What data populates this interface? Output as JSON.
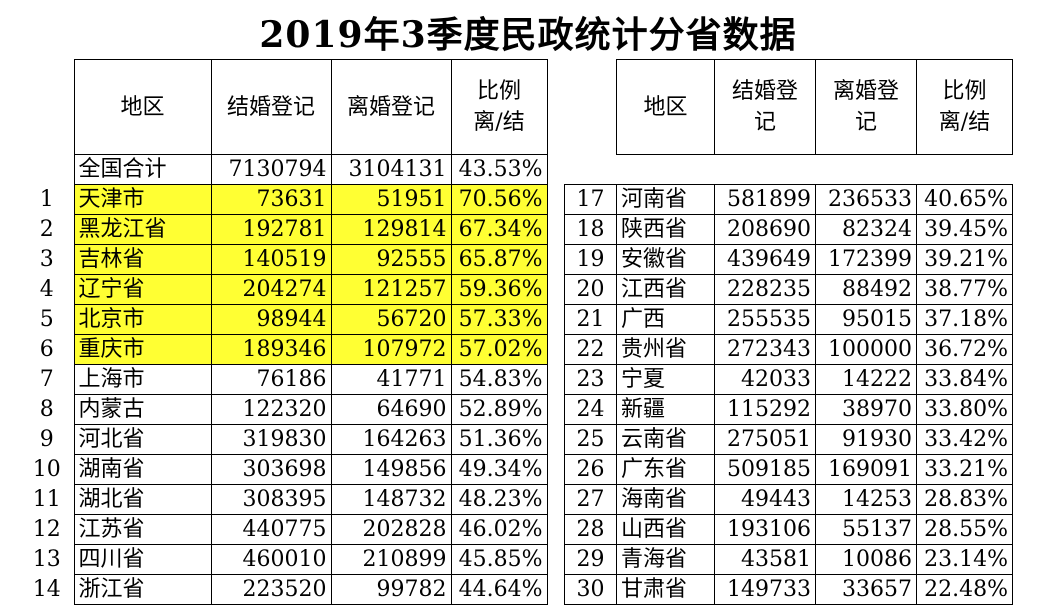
{
  "title": "2019年3季度民政统计分省数据",
  "left_table": {
    "headers": {
      "region": "地区",
      "marriage": "结婚登记",
      "divorce": "离婚登记",
      "ratio": "比例\n离/结"
    },
    "total": {
      "region": "全国合计",
      "marriage": "7130794",
      "divorce": "3104131",
      "ratio": "43.53%"
    },
    "rows": [
      {
        "rank": "1",
        "region": "天津市",
        "marriage": "73631",
        "divorce": "51951",
        "ratio": "70.56%"
      },
      {
        "rank": "2",
        "region": "黑龙江省",
        "marriage": "192781",
        "divorce": "129814",
        "ratio": "67.34%"
      },
      {
        "rank": "3",
        "region": "吉林省",
        "marriage": "140519",
        "divorce": "92555",
        "ratio": "65.87%"
      },
      {
        "rank": "4",
        "region": "辽宁省",
        "marriage": "204274",
        "divorce": "121257",
        "ratio": "59.36%"
      },
      {
        "rank": "5",
        "region": "北京市",
        "marriage": "98944",
        "divorce": "56720",
        "ratio": "57.33%"
      },
      {
        "rank": "6",
        "region": "重庆市",
        "marriage": "189346",
        "divorce": "107972",
        "ratio": "57.02%"
      },
      {
        "rank": "7",
        "region": "上海市",
        "marriage": "76186",
        "divorce": "41771",
        "ratio": "54.83%"
      },
      {
        "rank": "8",
        "region": "内蒙古",
        "marriage": "122320",
        "divorce": "64690",
        "ratio": "52.89%"
      },
      {
        "rank": "9",
        "region": "河北省",
        "marriage": "319830",
        "divorce": "164263",
        "ratio": "51.36%"
      },
      {
        "rank": "10",
        "region": "湖南省",
        "marriage": "303698",
        "divorce": "149856",
        "ratio": "49.34%"
      },
      {
        "rank": "11",
        "region": "湖北省",
        "marriage": "308395",
        "divorce": "148732",
        "ratio": "48.23%"
      },
      {
        "rank": "12",
        "region": "江苏省",
        "marriage": "440775",
        "divorce": "202828",
        "ratio": "46.02%"
      },
      {
        "rank": "13",
        "region": "四川省",
        "marriage": "460010",
        "divorce": "210899",
        "ratio": "45.85%"
      },
      {
        "rank": "14",
        "region": "浙江省",
        "marriage": "223520",
        "divorce": "99782",
        "ratio": "44.64%"
      }
    ]
  },
  "right_table": {
    "headers": {
      "region": "地区",
      "marriage": "结婚登\n记",
      "divorce": "离婚登\n记",
      "ratio": "比例\n离/结"
    },
    "rows": [
      {
        "rank": "17",
        "region": "河南省",
        "marriage": "581899",
        "divorce": "236533",
        "ratio": "40.65%"
      },
      {
        "rank": "18",
        "region": "陕西省",
        "marriage": "208690",
        "divorce": "82324",
        "ratio": "39.45%"
      },
      {
        "rank": "19",
        "region": "安徽省",
        "marriage": "439649",
        "divorce": "172399",
        "ratio": "39.21%"
      },
      {
        "rank": "20",
        "region": "江西省",
        "marriage": "228235",
        "divorce": "88492",
        "ratio": "38.77%"
      },
      {
        "rank": "21",
        "region": "广西",
        "marriage": "255535",
        "divorce": "95015",
        "ratio": "37.18%"
      },
      {
        "rank": "22",
        "region": "贵州省",
        "marriage": "272343",
        "divorce": "100000",
        "ratio": "36.72%"
      },
      {
        "rank": "23",
        "region": "宁夏",
        "marriage": "42033",
        "divorce": "14222",
        "ratio": "33.84%"
      },
      {
        "rank": "24",
        "region": "新疆",
        "marriage": "115292",
        "divorce": "38970",
        "ratio": "33.80%"
      },
      {
        "rank": "25",
        "region": "云南省",
        "marriage": "275051",
        "divorce": "91930",
        "ratio": "33.42%"
      },
      {
        "rank": "26",
        "region": "广东省",
        "marriage": "509185",
        "divorce": "169091",
        "ratio": "33.21%"
      },
      {
        "rank": "27",
        "region": "海南省",
        "marriage": "49443",
        "divorce": "14253",
        "ratio": "28.83%"
      },
      {
        "rank": "28",
        "region": "山西省",
        "marriage": "193106",
        "divorce": "55137",
        "ratio": "28.55%"
      },
      {
        "rank": "29",
        "region": "青海省",
        "marriage": "43581",
        "divorce": "10086",
        "ratio": "23.14%"
      },
      {
        "rank": "30",
        "region": "甘肃省",
        "marriage": "149733",
        "divorce": "33657",
        "ratio": "22.48%"
      }
    ]
  },
  "highlight_color": "#ffff33",
  "highlighted_ranks_left": [
    "1",
    "2",
    "3",
    "4",
    "5",
    "6"
  ]
}
